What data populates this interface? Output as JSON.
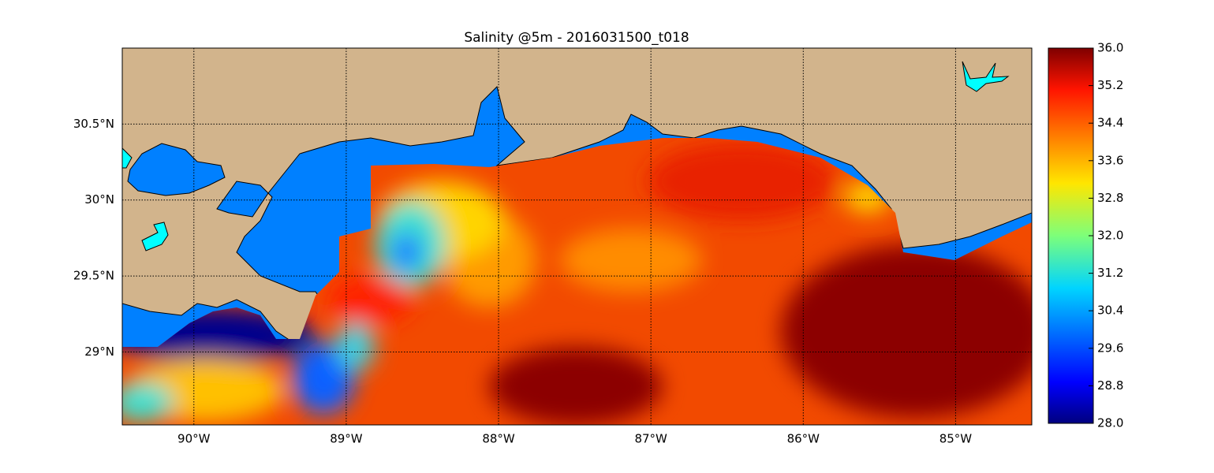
{
  "chart_data": {
    "type": "map",
    "title": "Salinity @5m - 2016031500_t018",
    "xlim": [
      -90.47,
      -84.5
    ],
    "ylim": [
      28.52,
      31.0
    ],
    "xticks": [
      {
        "value": -90,
        "label": "90°W"
      },
      {
        "value": -89,
        "label": "89°W"
      },
      {
        "value": -88,
        "label": "88°W"
      },
      {
        "value": -87,
        "label": "87°W"
      },
      {
        "value": -86,
        "label": "86°W"
      },
      {
        "value": -85,
        "label": "85°W"
      }
    ],
    "yticks": [
      {
        "value": 29,
        "label": "29°N"
      },
      {
        "value": 29.5,
        "label": "29.5°N"
      },
      {
        "value": 30,
        "label": "30°N"
      },
      {
        "value": 30.5,
        "label": "30.5°N"
      }
    ],
    "grid": true,
    "colorbar": {
      "lim": [
        28,
        36
      ],
      "ticks": [
        {
          "value": 28,
          "label": "28.0"
        },
        {
          "value": 28.8,
          "label": "28.8"
        },
        {
          "value": 29.6,
          "label": "29.6"
        },
        {
          "value": 30.4,
          "label": "30.4"
        },
        {
          "value": 31.2,
          "label": "31.2"
        },
        {
          "value": 32,
          "label": "32.0"
        },
        {
          "value": 32.8,
          "label": "32.8"
        },
        {
          "value": 33.6,
          "label": "33.6"
        },
        {
          "value": 34.4,
          "label": "34.4"
        },
        {
          "value": 35.2,
          "label": "35.2"
        },
        {
          "value": 36,
          "label": "36.0"
        }
      ]
    }
  }
}
